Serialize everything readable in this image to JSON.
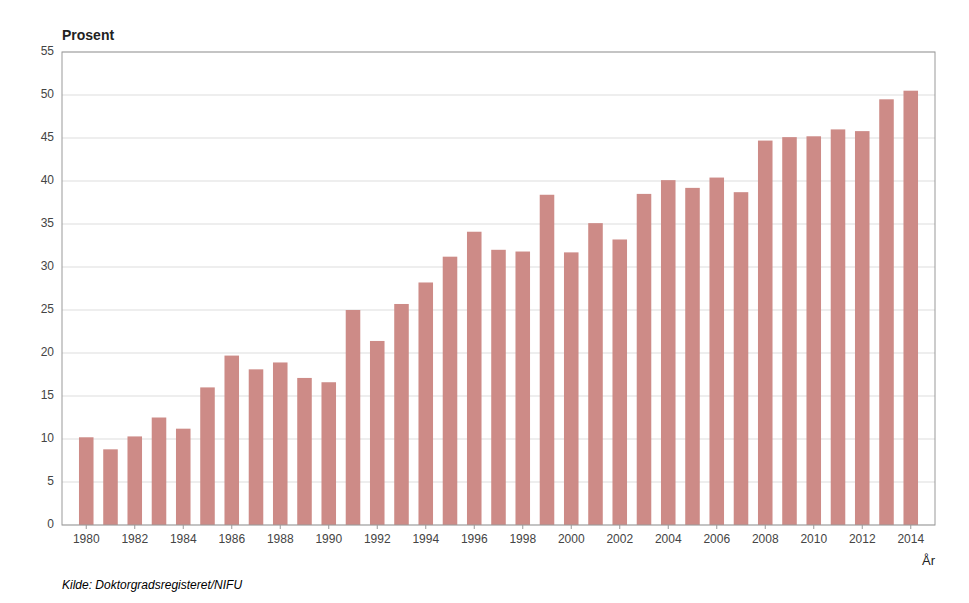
{
  "chart_data": {
    "type": "bar",
    "x": [
      1980,
      1981,
      1982,
      1983,
      1984,
      1985,
      1986,
      1987,
      1988,
      1989,
      1990,
      1991,
      1992,
      1993,
      1994,
      1995,
      1996,
      1997,
      1998,
      1999,
      2000,
      2001,
      2002,
      2003,
      2004,
      2005,
      2006,
      2007,
      2008,
      2009,
      2010,
      2011,
      2012,
      2013,
      2014
    ],
    "values": [
      10.2,
      8.8,
      10.3,
      12.5,
      11.2,
      16.0,
      19.7,
      18.1,
      18.9,
      17.1,
      16.6,
      25.0,
      21.4,
      25.7,
      28.2,
      31.2,
      34.1,
      32.0,
      31.8,
      38.4,
      31.7,
      35.1,
      33.2,
      38.5,
      40.1,
      39.2,
      40.4,
      38.7,
      44.7,
      45.1,
      45.2,
      46.0,
      45.8,
      49.5,
      50.5
    ],
    "color": "#cd8b87",
    "x_label": "År",
    "y_label": "Prosent",
    "annotations": [
      "Kilde:  Doktorgradsregisteret/NIFU"
    ],
    "xlim": [
      1979,
      2015
    ],
    "xticks": [
      1980,
      1982,
      1984,
      1986,
      1988,
      1990,
      1992,
      1994,
      1996,
      1998,
      2000,
      2002,
      2004,
      2006,
      2008,
      2010,
      2012,
      2014
    ],
    "ylim": [
      0,
      55
    ],
    "yticks": [
      0,
      5,
      10,
      15,
      20,
      25,
      30,
      35,
      40,
      45,
      50,
      55
    ],
    "grid": true
  }
}
